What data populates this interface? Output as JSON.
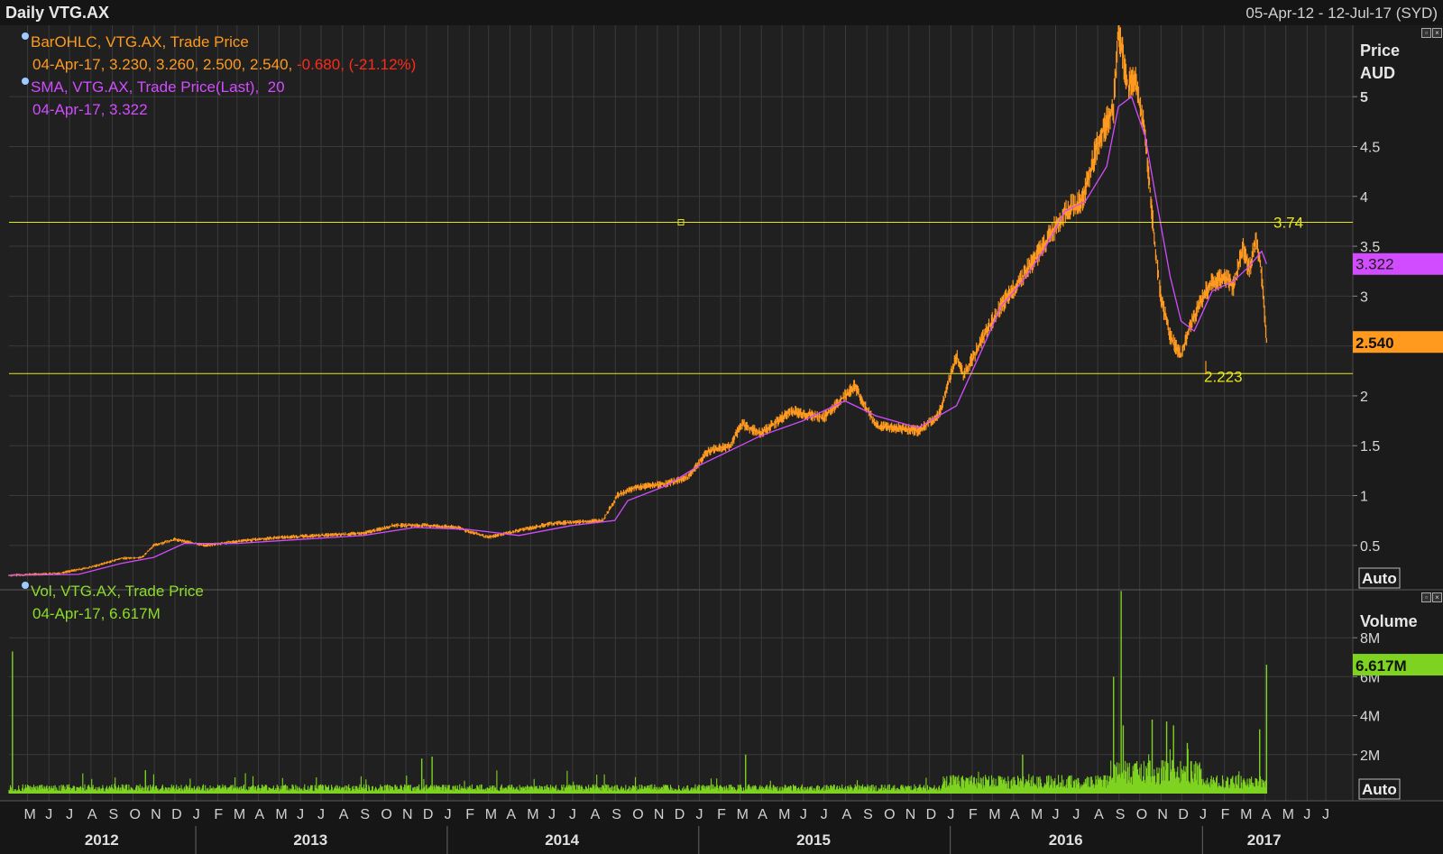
{
  "header": {
    "title": "Daily VTG.AX",
    "date_range": "05-Apr-12 - 12-Jul-17 (SYD)"
  },
  "legend": {
    "ohlc_name": "BarOHLC, VTG.AX, Trade Price",
    "ohlc_values": "04-Apr-17, 3.230, 3.260, 2.500, 2.540,",
    "ohlc_change": "-0.680, (-21.12%)",
    "sma_name": "SMA, VTG.AX, Trade Price(Last),",
    "sma_period": "20",
    "sma_values": "04-Apr-17, 3.322",
    "vol_name": "Vol, VTG.AX, Trade Price",
    "vol_values": "04-Apr-17, 6.617M"
  },
  "colors": {
    "price": "#ff9a1f",
    "sma": "#d24cff",
    "volume": "#7ed321",
    "hline": "#e6e619",
    "grid": "#3a3a3a"
  },
  "chart_data": [
    {
      "type": "line",
      "title": "",
      "ylabel": "Price AUD",
      "yaxis_label_lines": [
        "Price",
        "AUD"
      ],
      "scale_mode": "Auto",
      "ylim": [
        0.2,
        5.3
      ],
      "yticks": [
        0.5,
        1,
        1.5,
        2,
        2.5,
        3,
        3.5,
        4,
        4.5,
        5
      ],
      "ytick_labels": [
        "0.5",
        "1",
        "1.5",
        "2",
        "",
        "3",
        "3.5",
        "4",
        "4.5",
        "5"
      ],
      "series": [
        {
          "name": "BarOHLC, VTG.AX, Trade Price",
          "x": [
            "2012-04-05",
            "2012-06-15",
            "2012-08-01",
            "2012-09-15",
            "2012-10-15",
            "2012-11-01",
            "2012-12-01",
            "2013-01-15",
            "2013-03-01",
            "2013-05-01",
            "2013-07-01",
            "2013-09-01",
            "2013-10-15",
            "2013-12-01",
            "2014-01-15",
            "2014-03-01",
            "2014-04-15",
            "2014-06-01",
            "2014-08-15",
            "2014-09-05",
            "2014-10-01",
            "2014-11-15",
            "2014-12-15",
            "2015-01-15",
            "2015-02-15",
            "2015-03-05",
            "2015-04-01",
            "2015-05-15",
            "2015-07-01",
            "2015-08-15",
            "2015-09-15",
            "2015-10-15",
            "2015-11-15",
            "2015-12-15",
            "2016-01-10",
            "2016-01-20",
            "2016-02-15",
            "2016-03-15",
            "2016-04-15",
            "2016-05-15",
            "2016-06-15",
            "2016-07-10",
            "2016-08-01",
            "2016-08-15",
            "2016-08-25",
            "2016-09-01",
            "2016-09-15",
            "2016-09-25",
            "2016-10-10",
            "2016-10-20",
            "2016-11-01",
            "2016-11-15",
            "2016-12-01",
            "2016-12-10",
            "2016-12-20",
            "2017-01-10",
            "2017-02-01",
            "2017-02-15",
            "2017-03-01",
            "2017-03-10",
            "2017-03-20",
            "2017-03-28",
            "2017-04-04"
          ],
          "values": [
            0.2,
            0.22,
            0.28,
            0.37,
            0.38,
            0.5,
            0.56,
            0.5,
            0.54,
            0.58,
            0.6,
            0.62,
            0.7,
            0.7,
            0.68,
            0.58,
            0.65,
            0.72,
            0.75,
            1.0,
            1.08,
            1.12,
            1.18,
            1.45,
            1.5,
            1.72,
            1.62,
            1.85,
            1.78,
            2.1,
            1.7,
            1.68,
            1.65,
            1.8,
            2.4,
            2.2,
            2.55,
            2.9,
            3.2,
            3.5,
            3.85,
            3.95,
            4.5,
            4.75,
            4.9,
            5.7,
            5.1,
            5.2,
            4.6,
            3.8,
            3.0,
            2.6,
            2.4,
            2.6,
            2.8,
            3.1,
            3.2,
            3.1,
            3.5,
            3.25,
            3.6,
            3.2,
            2.54
          ]
        },
        {
          "name": "SMA, VTG.AX, Trade Price(Last), 20",
          "x": [
            "2012-04-05",
            "2012-07-15",
            "2012-09-15",
            "2012-11-01",
            "2012-12-15",
            "2013-03-01",
            "2013-06-01",
            "2013-09-01",
            "2013-11-15",
            "2014-02-01",
            "2014-04-15",
            "2014-07-01",
            "2014-09-01",
            "2014-09-20",
            "2014-11-15",
            "2015-01-01",
            "2015-02-15",
            "2015-04-01",
            "2015-06-01",
            "2015-08-01",
            "2015-09-15",
            "2015-11-15",
            "2016-01-10",
            "2016-02-15",
            "2016-03-15",
            "2016-04-15",
            "2016-05-15",
            "2016-06-15",
            "2016-07-15",
            "2016-08-15",
            "2016-09-01",
            "2016-09-20",
            "2016-10-10",
            "2016-10-25",
            "2016-11-15",
            "2016-12-01",
            "2016-12-20",
            "2017-01-15",
            "2017-02-15",
            "2017-03-10",
            "2017-03-28",
            "2017-04-04"
          ],
          "values": [
            0.2,
            0.21,
            0.32,
            0.38,
            0.52,
            0.52,
            0.56,
            0.6,
            0.68,
            0.66,
            0.6,
            0.7,
            0.75,
            0.95,
            1.1,
            1.3,
            1.45,
            1.6,
            1.75,
            1.95,
            1.8,
            1.68,
            1.9,
            2.45,
            2.9,
            3.15,
            3.45,
            3.85,
            3.95,
            4.3,
            4.9,
            5.0,
            4.6,
            4.0,
            3.2,
            2.75,
            2.65,
            3.05,
            3.15,
            3.3,
            3.45,
            3.322
          ]
        }
      ],
      "horizontal_lines": [
        {
          "value": 3.74,
          "label": "3.74"
        },
        {
          "value": 2.223,
          "label": "2.223"
        }
      ],
      "last_value_tags": [
        {
          "value": 3.322,
          "label": "3.322",
          "series": "SMA"
        },
        {
          "value": 2.54,
          "label": "2.540",
          "series": "BarOHLC"
        }
      ]
    },
    {
      "type": "bar",
      "title": "",
      "ylabel": "Volume",
      "scale_mode": "Auto",
      "ylim": [
        0,
        10
      ],
      "yticks": [
        2,
        4,
        6,
        8
      ],
      "ytick_labels": [
        "2M",
        "4M",
        "6M",
        "8M"
      ],
      "unit": "M",
      "spikes": [
        {
          "x": "2012-04-10",
          "value": 7.3
        },
        {
          "x": "2012-10-20",
          "value": 1.2
        },
        {
          "x": "2013-11-25",
          "value": 1.8
        },
        {
          "x": "2013-12-10",
          "value": 1.9
        },
        {
          "x": "2015-03-10",
          "value": 2.0
        },
        {
          "x": "2016-04-15",
          "value": 2.0
        },
        {
          "x": "2016-08-25",
          "value": 6.0
        },
        {
          "x": "2016-09-05",
          "value": 10.4
        },
        {
          "x": "2016-09-08",
          "value": 3.5
        },
        {
          "x": "2016-10-20",
          "value": 3.8
        },
        {
          "x": "2016-11-10",
          "value": 3.7
        },
        {
          "x": "2016-11-20",
          "value": 3.5
        },
        {
          "x": "2016-12-10",
          "value": 2.6
        },
        {
          "x": "2017-03-25",
          "value": 3.3
        },
        {
          "x": "2017-04-04",
          "value": 6.617
        }
      ],
      "baseline_level": 0.3,
      "last_value_tags": [
        {
          "value": 6.617,
          "label": "6.617M"
        }
      ]
    }
  ],
  "time_axis": {
    "months": [
      {
        "label": "M",
        "date": "2012-05-15"
      },
      {
        "label": "J",
        "date": "2012-06-15"
      },
      {
        "label": "J",
        "date": "2012-07-15"
      },
      {
        "label": "A",
        "date": "2012-08-15"
      },
      {
        "label": "S",
        "date": "2012-09-15"
      },
      {
        "label": "O",
        "date": "2012-10-15"
      },
      {
        "label": "N",
        "date": "2012-11-15"
      },
      {
        "label": "D",
        "date": "2012-12-15"
      },
      {
        "label": "J",
        "date": "2013-01-15"
      },
      {
        "label": "F",
        "date": "2013-02-15"
      },
      {
        "label": "M",
        "date": "2013-03-15"
      },
      {
        "label": "A",
        "date": "2013-04-15"
      },
      {
        "label": "M",
        "date": "2013-05-15"
      },
      {
        "label": "J",
        "date": "2013-06-15"
      },
      {
        "label": "J",
        "date": "2013-07-15"
      },
      {
        "label": "A",
        "date": "2013-08-15"
      },
      {
        "label": "S",
        "date": "2013-09-15"
      },
      {
        "label": "O",
        "date": "2013-10-15"
      },
      {
        "label": "N",
        "date": "2013-11-15"
      },
      {
        "label": "D",
        "date": "2013-12-15"
      },
      {
        "label": "J",
        "date": "2014-01-15"
      },
      {
        "label": "F",
        "date": "2014-02-15"
      },
      {
        "label": "M",
        "date": "2014-03-15"
      },
      {
        "label": "A",
        "date": "2014-04-15"
      },
      {
        "label": "M",
        "date": "2014-05-15"
      },
      {
        "label": "J",
        "date": "2014-06-15"
      },
      {
        "label": "J",
        "date": "2014-07-15"
      },
      {
        "label": "A",
        "date": "2014-08-15"
      },
      {
        "label": "S",
        "date": "2014-09-15"
      },
      {
        "label": "O",
        "date": "2014-10-15"
      },
      {
        "label": "N",
        "date": "2014-11-15"
      },
      {
        "label": "D",
        "date": "2014-12-15"
      },
      {
        "label": "J",
        "date": "2015-01-15"
      },
      {
        "label": "F",
        "date": "2015-02-15"
      },
      {
        "label": "M",
        "date": "2015-03-15"
      },
      {
        "label": "A",
        "date": "2015-04-15"
      },
      {
        "label": "M",
        "date": "2015-05-15"
      },
      {
        "label": "J",
        "date": "2015-06-15"
      },
      {
        "label": "J",
        "date": "2015-07-15"
      },
      {
        "label": "A",
        "date": "2015-08-15"
      },
      {
        "label": "S",
        "date": "2015-09-15"
      },
      {
        "label": "O",
        "date": "2015-10-15"
      },
      {
        "label": "N",
        "date": "2015-11-15"
      },
      {
        "label": "D",
        "date": "2015-12-15"
      },
      {
        "label": "J",
        "date": "2016-01-15"
      },
      {
        "label": "F",
        "date": "2016-02-15"
      },
      {
        "label": "M",
        "date": "2016-03-15"
      },
      {
        "label": "A",
        "date": "2016-04-15"
      },
      {
        "label": "M",
        "date": "2016-05-15"
      },
      {
        "label": "J",
        "date": "2016-06-15"
      },
      {
        "label": "J",
        "date": "2016-07-15"
      },
      {
        "label": "A",
        "date": "2016-08-15"
      },
      {
        "label": "S",
        "date": "2016-09-15"
      },
      {
        "label": "O",
        "date": "2016-10-15"
      },
      {
        "label": "N",
        "date": "2016-11-15"
      },
      {
        "label": "D",
        "date": "2016-12-15"
      },
      {
        "label": "J",
        "date": "2017-01-15"
      },
      {
        "label": "F",
        "date": "2017-02-15"
      },
      {
        "label": "M",
        "date": "2017-03-15"
      },
      {
        "label": "A",
        "date": "2017-04-15"
      },
      {
        "label": "M",
        "date": "2017-05-15"
      },
      {
        "label": "J",
        "date": "2017-06-15"
      },
      {
        "label": "J",
        "date": "2017-07-12"
      }
    ],
    "years": [
      {
        "label": "2012",
        "date": "2012-09-01"
      },
      {
        "label": "2013",
        "date": "2013-07-01"
      },
      {
        "label": "2014",
        "date": "2014-07-01"
      },
      {
        "label": "2015",
        "date": "2015-07-01"
      },
      {
        "label": "2016",
        "date": "2016-07-01"
      },
      {
        "label": "2017",
        "date": "2017-04-15"
      }
    ],
    "year_dividers": [
      "2013-01-01",
      "2014-01-01",
      "2015-01-01",
      "2016-01-01",
      "2017-01-01"
    ]
  }
}
